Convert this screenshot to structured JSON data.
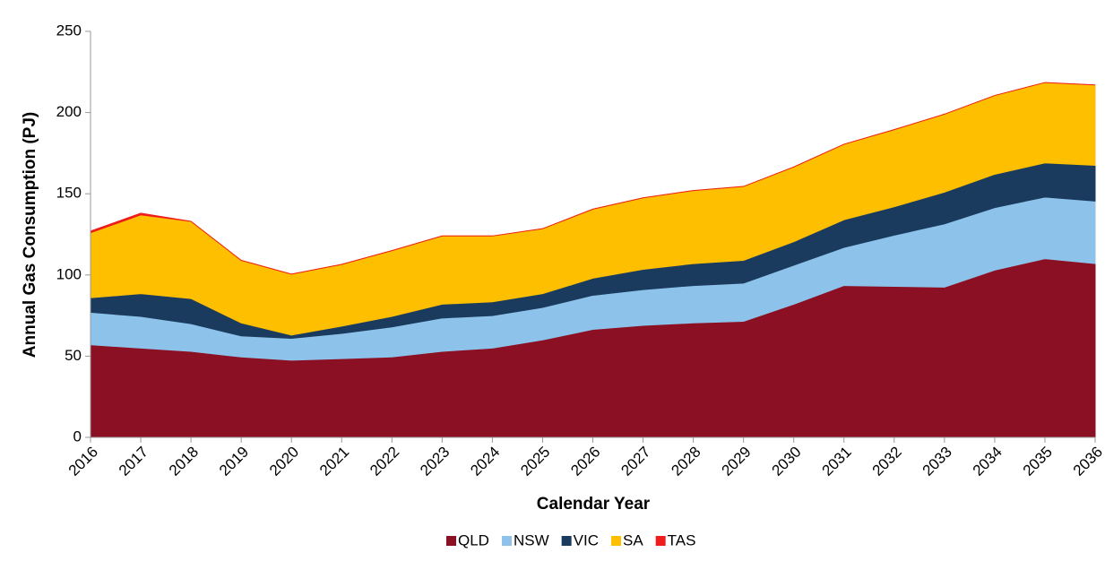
{
  "chart_data": {
    "type": "stacked-area",
    "x_label": "Calendar Year",
    "y_label": "Annual Gas Consumption (PJ)",
    "categories": [
      "2016",
      "2017",
      "2018",
      "2019",
      "2020",
      "2021",
      "2022",
      "2023",
      "2024",
      "2025",
      "2026",
      "2027",
      "2028",
      "2029",
      "2030",
      "2031",
      "2032",
      "2033",
      "2034",
      "2035",
      "2036"
    ],
    "series": [
      {
        "name": "QLD",
        "color": "#8b1024",
        "values": [
          57,
          55,
          53,
          49.5,
          47.5,
          48.5,
          49.5,
          53,
          55,
          60,
          66.5,
          69,
          70.5,
          71.5,
          82,
          93.5,
          93,
          92.5,
          103,
          110,
          107
        ]
      },
      {
        "name": "NSW",
        "color": "#8dc3ea",
        "values": [
          20,
          19.5,
          17,
          13,
          13.5,
          15.5,
          18.5,
          20.5,
          20,
          20,
          21,
          22,
          23,
          23.5,
          24,
          23.5,
          31.5,
          39,
          38.5,
          38,
          38.5
        ]
      },
      {
        "name": "VIC",
        "color": "#1b3b5e",
        "values": [
          9,
          14,
          15.5,
          8,
          2,
          4.5,
          6.5,
          8.5,
          8.5,
          8.5,
          10.5,
          12.5,
          13.5,
          14,
          14.5,
          17,
          17.5,
          19.5,
          20.5,
          21,
          22
        ]
      },
      {
        "name": "SA",
        "color": "#fdbf00",
        "values": [
          40,
          48.5,
          47.5,
          38.5,
          37.5,
          38,
          40.5,
          42,
          40.5,
          40,
          42.5,
          44,
          45,
          45.5,
          46,
          46.5,
          47.5,
          48,
          48.5,
          49.5,
          49.5
        ]
      },
      {
        "name": "TAS",
        "color": "#ee1c1c",
        "values": [
          1,
          1,
          0,
          0,
          0,
          0,
          0,
          0,
          0,
          0,
          0,
          0,
          0,
          0,
          0,
          0,
          0,
          0,
          0,
          0,
          0
        ]
      }
    ],
    "ylim": [
      0,
      250
    ],
    "yticks": [
      0,
      50,
      100,
      150,
      200,
      250
    ],
    "grid": false,
    "legend": "bottom"
  }
}
